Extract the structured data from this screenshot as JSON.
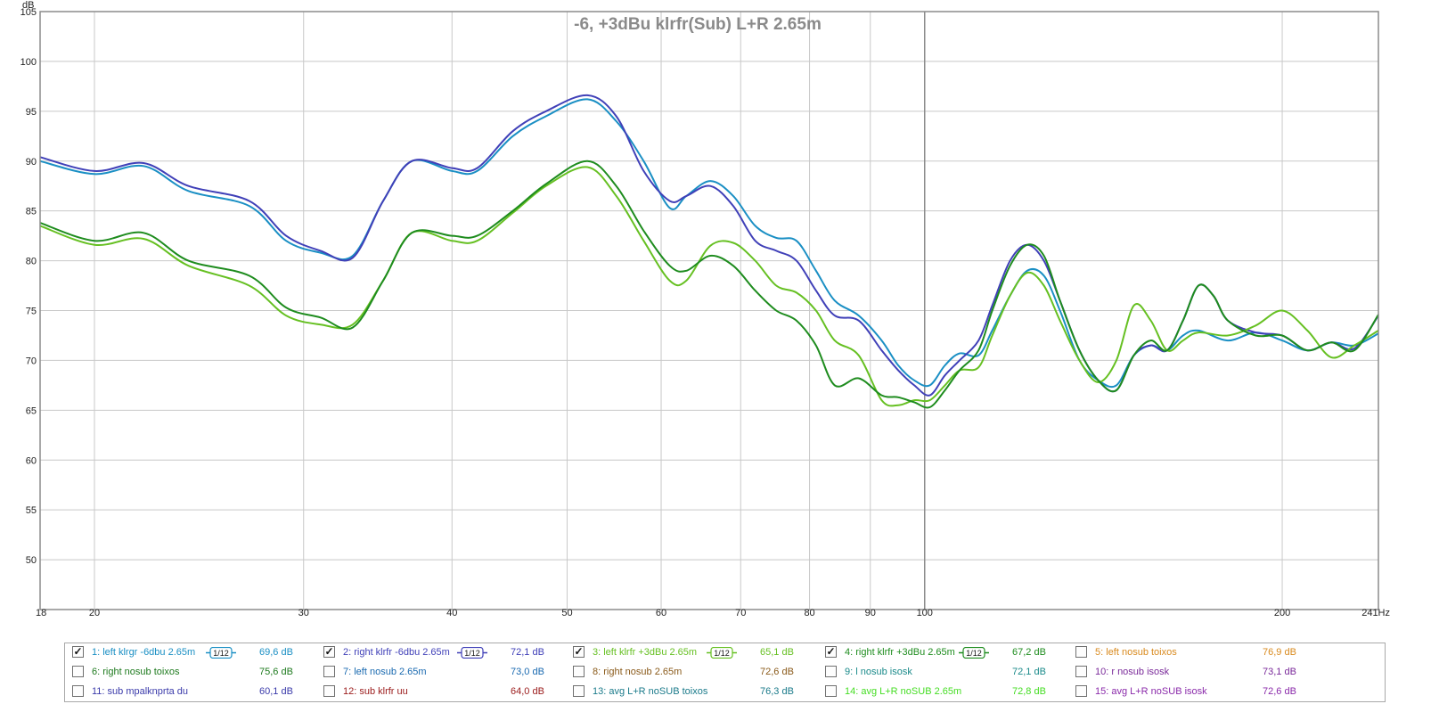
{
  "chart_data": {
    "type": "line",
    "title": "-6, +3dBu klrfr(Sub) L+R 2.65m",
    "ylabel": "dB",
    "xunit": "Hz",
    "xscale": "log",
    "xlim": [
      18,
      241
    ],
    "ylim": [
      45,
      105
    ],
    "grid": true,
    "legend_position": "bottom",
    "x_ticks": [
      {
        "v": 18,
        "label": "18"
      },
      {
        "v": 20,
        "label": "20"
      },
      {
        "v": 30,
        "label": "30"
      },
      {
        "v": 40,
        "label": "40"
      },
      {
        "v": 50,
        "label": "50"
      },
      {
        "v": 60,
        "label": "60"
      },
      {
        "v": 70,
        "label": "70"
      },
      {
        "v": 80,
        "label": "80"
      },
      {
        "v": 90,
        "label": "90"
      },
      {
        "v": 100,
        "label": "100"
      },
      {
        "v": 200,
        "label": "200"
      },
      {
        "v": 241,
        "label": "241Hz"
      }
    ],
    "y_ticks": [
      105,
      100,
      95,
      90,
      85,
      80,
      75,
      70,
      65,
      60,
      55,
      50
    ],
    "series": [
      {
        "name": "1: left klrgr -6dbu 2.65m",
        "color": "#1a8fc4",
        "points": [
          [
            18,
            90
          ],
          [
            20,
            88.7
          ],
          [
            22,
            89.5
          ],
          [
            24,
            87
          ],
          [
            27,
            85.5
          ],
          [
            29,
            82
          ],
          [
            31,
            80.8
          ],
          [
            33,
            80.5
          ],
          [
            35,
            86
          ],
          [
            37,
            90
          ],
          [
            40,
            89
          ],
          [
            42,
            89
          ],
          [
            45,
            92.5
          ],
          [
            48,
            94.5
          ],
          [
            52,
            96.2
          ],
          [
            55,
            94
          ],
          [
            58,
            90
          ],
          [
            61,
            85.3
          ],
          [
            63,
            86.5
          ],
          [
            66,
            88
          ],
          [
            69,
            86.5
          ],
          [
            72,
            83.5
          ],
          [
            75,
            82.3
          ],
          [
            78,
            82
          ],
          [
            81,
            79
          ],
          [
            84,
            76
          ],
          [
            88,
            74.5
          ],
          [
            92,
            72
          ],
          [
            95,
            69.5
          ],
          [
            98,
            68
          ],
          [
            101,
            67.5
          ],
          [
            104,
            69.5
          ],
          [
            107,
            70.7
          ],
          [
            111,
            70.5
          ],
          [
            114,
            73
          ],
          [
            118,
            76.5
          ],
          [
            122,
            79
          ],
          [
            126,
            78.5
          ],
          [
            130,
            75
          ],
          [
            135,
            70
          ],
          [
            140,
            68
          ],
          [
            145,
            67.5
          ],
          [
            150,
            70.5
          ],
          [
            155,
            71.5
          ],
          [
            160,
            71
          ],
          [
            165,
            72.5
          ],
          [
            170,
            73
          ],
          [
            180,
            72
          ],
          [
            190,
            72.8
          ],
          [
            200,
            72
          ],
          [
            210,
            71
          ],
          [
            220,
            71.8
          ],
          [
            230,
            71.5
          ],
          [
            241,
            72.7
          ]
        ]
      },
      {
        "name": "2: right klrfr -6dbu 2.65m",
        "color": "#4040b8",
        "points": [
          [
            18,
            90.4
          ],
          [
            20,
            89
          ],
          [
            22,
            89.8
          ],
          [
            24,
            87.5
          ],
          [
            27,
            86
          ],
          [
            29,
            82.5
          ],
          [
            31,
            81
          ],
          [
            33,
            80.3
          ],
          [
            35,
            86
          ],
          [
            37,
            90
          ],
          [
            40,
            89.3
          ],
          [
            42,
            89.3
          ],
          [
            45,
            93
          ],
          [
            48,
            95
          ],
          [
            52,
            96.6
          ],
          [
            55,
            94.5
          ],
          [
            58,
            89
          ],
          [
            61,
            86
          ],
          [
            63,
            86.5
          ],
          [
            66,
            87.5
          ],
          [
            69,
            85.5
          ],
          [
            72,
            82
          ],
          [
            75,
            81
          ],
          [
            78,
            80
          ],
          [
            81,
            77
          ],
          [
            84,
            74.5
          ],
          [
            88,
            74
          ],
          [
            92,
            71
          ],
          [
            95,
            69
          ],
          [
            98,
            67.5
          ],
          [
            101,
            66.5
          ],
          [
            104,
            68.5
          ],
          [
            107,
            70
          ],
          [
            111,
            72
          ],
          [
            114,
            75.5
          ],
          [
            118,
            80
          ],
          [
            122,
            81.6
          ],
          [
            126,
            80
          ],
          [
            130,
            76
          ],
          [
            135,
            71
          ],
          [
            140,
            68
          ],
          [
            145,
            67
          ],
          [
            150,
            70.5
          ],
          [
            155,
            71.5
          ],
          [
            160,
            71
          ],
          [
            165,
            74
          ],
          [
            170,
            77.5
          ],
          [
            175,
            76.5
          ],
          [
            180,
            74
          ],
          [
            190,
            72.8
          ],
          [
            200,
            72.5
          ],
          [
            210,
            71
          ],
          [
            220,
            71.8
          ],
          [
            230,
            71.2
          ],
          [
            241,
            74.5
          ]
        ]
      },
      {
        "name": "3: left klrfr +3dBu 2.65m",
        "color": "#66c022",
        "points": [
          [
            18,
            83.5
          ],
          [
            20,
            81.6
          ],
          [
            22,
            82.2
          ],
          [
            24,
            79.5
          ],
          [
            27,
            77.5
          ],
          [
            29,
            74.5
          ],
          [
            31,
            73.6
          ],
          [
            33,
            73.6
          ],
          [
            35,
            78
          ],
          [
            37,
            82.8
          ],
          [
            40,
            82
          ],
          [
            42,
            82
          ],
          [
            45,
            84.8
          ],
          [
            48,
            87.5
          ],
          [
            52,
            89.4
          ],
          [
            55,
            86.5
          ],
          [
            58,
            82
          ],
          [
            61,
            78
          ],
          [
            63,
            78
          ],
          [
            66,
            81.5
          ],
          [
            69,
            81.8
          ],
          [
            72,
            80
          ],
          [
            75,
            77.5
          ],
          [
            78,
            76.8
          ],
          [
            81,
            75
          ],
          [
            84,
            72
          ],
          [
            88,
            70.5
          ],
          [
            92,
            66
          ],
          [
            95,
            65.5
          ],
          [
            98,
            66
          ],
          [
            101,
            66
          ],
          [
            104,
            67.5
          ],
          [
            107,
            69
          ],
          [
            111,
            69.3
          ],
          [
            114,
            72.5
          ],
          [
            118,
            76.5
          ],
          [
            122,
            78.8
          ],
          [
            126,
            77.5
          ],
          [
            130,
            74
          ],
          [
            135,
            70
          ],
          [
            140,
            67.8
          ],
          [
            145,
            70
          ],
          [
            150,
            75.5
          ],
          [
            155,
            74
          ],
          [
            160,
            71
          ],
          [
            165,
            72
          ],
          [
            170,
            72.8
          ],
          [
            180,
            72.5
          ],
          [
            190,
            73.5
          ],
          [
            200,
            75
          ],
          [
            210,
            73
          ],
          [
            220,
            70.3
          ],
          [
            230,
            71.5
          ],
          [
            241,
            73
          ]
        ]
      },
      {
        "name": "4: right klrfr +3dBu 2.65m",
        "color": "#1e8c1e",
        "points": [
          [
            18,
            83.8
          ],
          [
            20,
            82
          ],
          [
            22,
            82.8
          ],
          [
            24,
            80
          ],
          [
            27,
            78.5
          ],
          [
            29,
            75.3
          ],
          [
            31,
            74.3
          ],
          [
            33,
            73.3
          ],
          [
            35,
            78
          ],
          [
            37,
            82.8
          ],
          [
            40,
            82.5
          ],
          [
            42,
            82.5
          ],
          [
            45,
            85
          ],
          [
            48,
            87.7
          ],
          [
            52,
            90
          ],
          [
            55,
            87.5
          ],
          [
            58,
            83
          ],
          [
            61,
            79.5
          ],
          [
            63,
            79
          ],
          [
            66,
            80.5
          ],
          [
            69,
            79.5
          ],
          [
            72,
            77
          ],
          [
            75,
            75
          ],
          [
            78,
            74
          ],
          [
            81,
            71.5
          ],
          [
            84,
            67.5
          ],
          [
            88,
            68.2
          ],
          [
            92,
            66.5
          ],
          [
            95,
            66.3
          ],
          [
            98,
            65.8
          ],
          [
            101,
            65.3
          ],
          [
            104,
            67
          ],
          [
            107,
            69
          ],
          [
            111,
            71
          ],
          [
            114,
            75
          ],
          [
            118,
            79.5
          ],
          [
            122,
            81.6
          ],
          [
            126,
            80.5
          ],
          [
            130,
            76
          ],
          [
            135,
            71
          ],
          [
            140,
            68
          ],
          [
            145,
            67
          ],
          [
            150,
            70.5
          ],
          [
            155,
            72
          ],
          [
            160,
            71
          ],
          [
            165,
            74
          ],
          [
            170,
            77.5
          ],
          [
            175,
            76.5
          ],
          [
            180,
            74
          ],
          [
            190,
            72.5
          ],
          [
            200,
            72.5
          ],
          [
            210,
            71
          ],
          [
            220,
            71.8
          ],
          [
            230,
            71
          ],
          [
            241,
            74.6
          ]
        ]
      }
    ]
  },
  "legend": [
    {
      "name": "1: left klrgr -6dbu 2.65m",
      "value": "69,6 dB",
      "checked": true,
      "color": "#1a8fc4",
      "smoothing": "1/12"
    },
    {
      "name": "2: right klrfr -6dbu 2.65m",
      "value": "72,1 dB",
      "checked": true,
      "color": "#4040b8",
      "smoothing": "1/12"
    },
    {
      "name": "3: left klrfr +3dBu 2.65m",
      "value": "65,1 dB",
      "checked": true,
      "color": "#66c022",
      "smoothing": "1/12"
    },
    {
      "name": "4: right klrfr +3dBu 2.65m",
      "value": "67,2 dB",
      "checked": true,
      "color": "#1e8c1e",
      "smoothing": "1/12"
    },
    {
      "name": "5: left nosub toixos",
      "value": "76,9 dB",
      "checked": false,
      "color": "#d98a1e"
    },
    {
      "name": "6: right nosub toixos",
      "value": "75,6 dB",
      "checked": false,
      "color": "#1e7a1e"
    },
    {
      "name": "7: left nosub 2.65m",
      "value": "73,0 dB",
      "checked": false,
      "color": "#1a6ab0"
    },
    {
      "name": "8: right nosub 2.65m",
      "value": "72,6 dB",
      "checked": false,
      "color": "#8a5a1a"
    },
    {
      "name": "9: l nosub isosk",
      "value": "72,1 dB",
      "checked": false,
      "color": "#1a8a8a"
    },
    {
      "name": "10: r nosub isosk",
      "value": "73,1 dB",
      "checked": false,
      "color": "#7a2a9a"
    },
    {
      "name": "11: sub mpalknprta du",
      "value": "60,1 dB",
      "checked": false,
      "color": "#3a3aaa"
    },
    {
      "name": "12: sub klrfr uu",
      "value": "64,0 dB",
      "checked": false,
      "color": "#9a1a1a"
    },
    {
      "name": "13: avg L+R noSUB toixos",
      "value": "76,3 dB",
      "checked": false,
      "color": "#1a7a8a"
    },
    {
      "name": "14: avg L+R noSUB 2.65m",
      "value": "72,8 dB",
      "checked": false,
      "color": "#44dd22"
    },
    {
      "name": "15: avg L+R noSUB isosk",
      "value": "72,6 dB",
      "checked": false,
      "color": "#8a2aaa"
    }
  ]
}
